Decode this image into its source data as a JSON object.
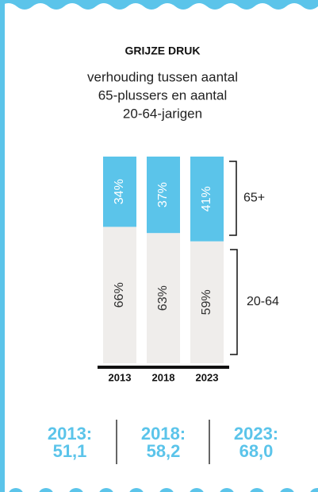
{
  "chart_data": {
    "type": "stacked-bar",
    "title": "GRIJZE DRUK",
    "subtitle": [
      "verhouding tussen aantal",
      "65-plussers en aantal",
      "20-64-jarigen"
    ],
    "categories": [
      "2013",
      "2018",
      "2023"
    ],
    "series": [
      {
        "name": "20-64",
        "color": "#efedeb",
        "label_color": "#333333",
        "values": [
          66,
          63,
          59
        ],
        "value_labels": [
          "66%",
          "63%",
          "59%"
        ]
      },
      {
        "name": "65+",
        "color": "#5bc4ea",
        "label_color": "#ffffff",
        "values": [
          34,
          37,
          41
        ],
        "value_labels": [
          "34%",
          "37%",
          "41%"
        ]
      }
    ],
    "ylim": [
      0,
      100
    ],
    "annotations": [
      {
        "year": "2013:",
        "value": "51,1"
      },
      {
        "year": "2018:",
        "value": "58,2"
      },
      {
        "year": "2023:",
        "value": "68,0"
      }
    ]
  }
}
